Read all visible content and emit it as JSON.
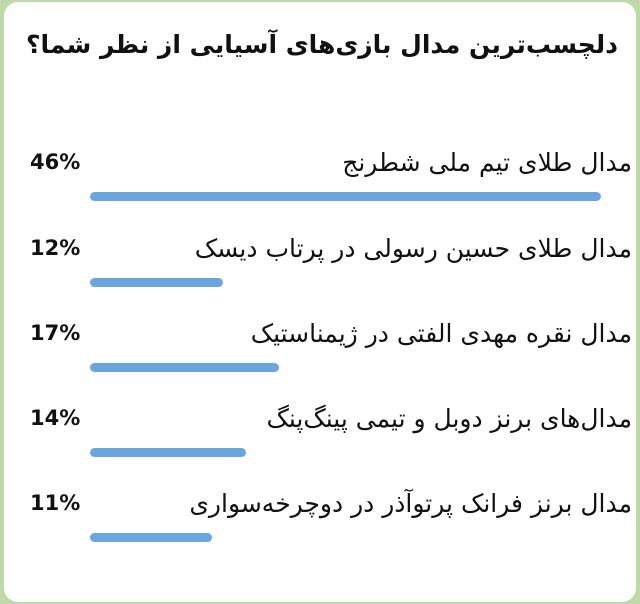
{
  "poll": {
    "question": "دلچسب‌ترین مدال بازی‌های آسیایی از نظر شما؟",
    "bar_color": "#6aa6dc",
    "options": [
      {
        "label": "مدال طلای تیم ملی شطرنج",
        "percent_text": "46%",
        "percent": 46
      },
      {
        "label": "مدال طلای حسین رسولی در پرتاب دیسک",
        "percent_text": "12%",
        "percent": 12
      },
      {
        "label": "مدال نقره مهدی الفتی در ژیمناستیک",
        "percent_text": "17%",
        "percent": 17
      },
      {
        "label": "مدال‌های برنز دوبل و تیمی پینگ‌پنگ",
        "percent_text": "14%",
        "percent": 14
      },
      {
        "label": "مدال برنز فرانک پرتوآذر در دوچرخه‌سواری",
        "percent_text": "11%",
        "percent": 11
      }
    ]
  }
}
